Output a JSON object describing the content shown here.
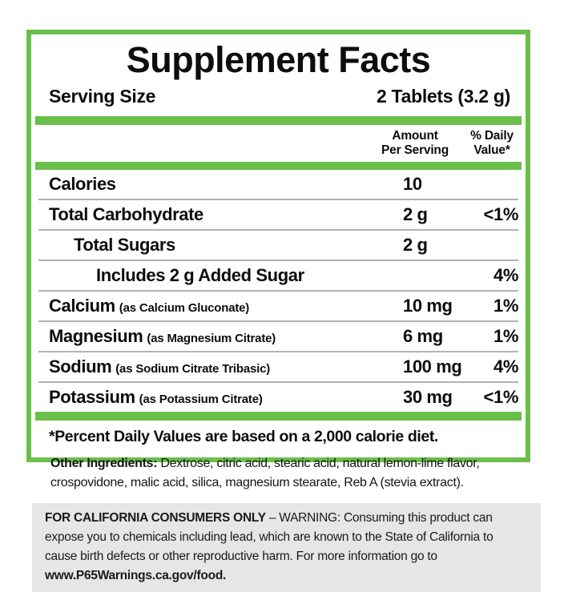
{
  "title": "Supplement Facts",
  "serving": {
    "label": "Serving Size",
    "value": "2 Tablets (3.2 g)"
  },
  "columns": {
    "amount_line1": "Amount",
    "amount_line2": "Per Serving",
    "dv_line1": "% Daily",
    "dv_line2": "Value*"
  },
  "rows": [
    {
      "name": "Calories",
      "note": "",
      "amount": "10",
      "dv": ""
    },
    {
      "name": "Total Carbohydrate",
      "note": "",
      "amount": "2 g",
      "dv": "<1%"
    },
    {
      "name": "Total Sugars",
      "note": "",
      "amount": "2 g",
      "dv": ""
    },
    {
      "name": "Includes 2 g Added Sugar",
      "note": "",
      "amount": "",
      "dv": "4%"
    },
    {
      "name": "Calcium",
      "note": "(as Calcium Gluconate)",
      "amount": "10 mg",
      "dv": "1%"
    },
    {
      "name": "Magnesium",
      "note": "(as Magnesium Citrate)",
      "amount": "6 mg",
      "dv": "1%"
    },
    {
      "name": "Sodium",
      "note": "(as Sodium Citrate Tribasic)",
      "amount": "100 mg",
      "dv": "4%"
    },
    {
      "name": "Potassium",
      "note": "(as Potassium Citrate)",
      "amount": "30 mg",
      "dv": "<1%"
    }
  ],
  "footnote": "*Percent Daily Values are based on a 2,000 calorie diet.",
  "other_ingredients": {
    "label": "Other Ingredients:",
    "text": " Dextrose, citric acid, stearic acid, natural lemon-lime flavor, crospovidone, malic acid, silica, magnesium stearate, Reb A (stevia extract)."
  },
  "california_warning": {
    "heading": "FOR CALIFORNIA CONSUMERS ONLY",
    "body": " – WARNING: Consuming this product can expose you to chemicals including lead, which are known to the State of California to cause birth defects or other reproductive harm. For more information go to ",
    "url": "www.P65Warnings.ca.gov/food."
  },
  "colors": {
    "accent_green": "#6abf4b",
    "separator_gray": "#b2b2b2",
    "warning_bg": "#e6e6e6",
    "text_black": "#0d0d0d"
  }
}
